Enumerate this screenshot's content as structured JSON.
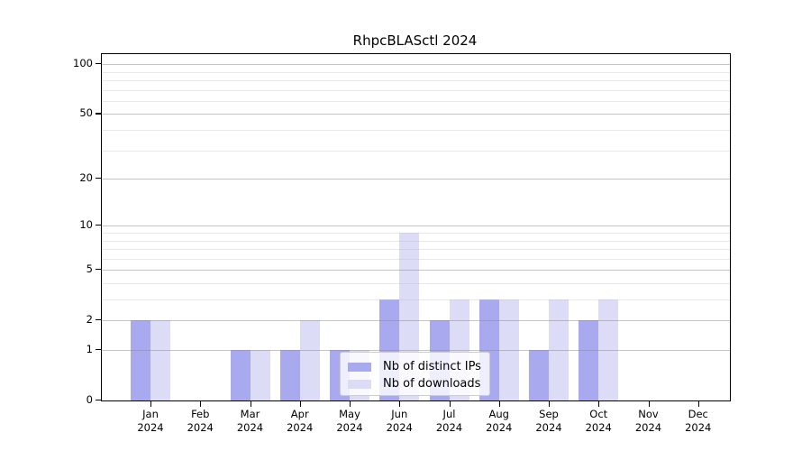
{
  "chart_data": {
    "type": "bar",
    "title": "RhpcBLASctl 2024",
    "categories": [
      "Jan",
      "Feb",
      "Mar",
      "Apr",
      "May",
      "Jun",
      "Jul",
      "Aug",
      "Sep",
      "Oct",
      "Nov",
      "Dec"
    ],
    "x_year_label": "2024",
    "series": [
      {
        "name": "Nb of distinct IPs",
        "color": "#a9a9ef",
        "values": [
          2,
          0,
          1,
          1,
          1,
          3,
          2,
          3,
          1,
          2,
          0,
          0
        ]
      },
      {
        "name": "Nb of downloads",
        "color": "#dcdcf7",
        "values": [
          2,
          0,
          1,
          2,
          1,
          9,
          3,
          3,
          3,
          3,
          0,
          0
        ]
      }
    ],
    "xlabel": "",
    "ylabel": "",
    "yscale": "log1p",
    "ylim": [
      0,
      115
    ],
    "y_major_ticks": [
      100,
      50,
      20,
      10,
      5,
      2,
      1,
      0
    ],
    "y_minor_gridlines": [
      3,
      4,
      6,
      7,
      8,
      9,
      30,
      40,
      60,
      70,
      80,
      90
    ],
    "grid": true,
    "legend_position": "lower center inside plot"
  }
}
